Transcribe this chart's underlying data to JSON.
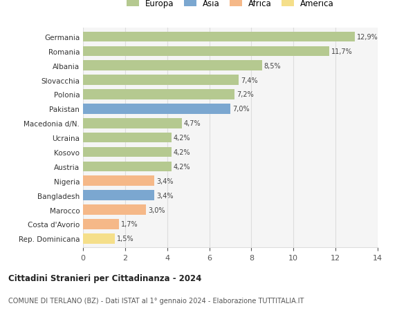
{
  "categories": [
    "Rep. Dominicana",
    "Costa d'Avorio",
    "Marocco",
    "Bangladesh",
    "Nigeria",
    "Austria",
    "Kosovo",
    "Ucraina",
    "Macedonia d/N.",
    "Pakistan",
    "Polonia",
    "Slovacchia",
    "Albania",
    "Romania",
    "Germania"
  ],
  "values": [
    1.5,
    1.7,
    3.0,
    3.4,
    3.4,
    4.2,
    4.2,
    4.2,
    4.7,
    7.0,
    7.2,
    7.4,
    8.5,
    11.7,
    12.9
  ],
  "labels": [
    "1,5%",
    "1,7%",
    "3,0%",
    "3,4%",
    "3,4%",
    "4,2%",
    "4,2%",
    "4,2%",
    "4,7%",
    "7,0%",
    "7,2%",
    "7,4%",
    "8,5%",
    "11,7%",
    "12,9%"
  ],
  "colors": [
    "#f5df8a",
    "#f5b888",
    "#f5b888",
    "#7ba7d0",
    "#f5b888",
    "#b5c990",
    "#b5c990",
    "#b5c990",
    "#b5c990",
    "#7ba7d0",
    "#b5c990",
    "#b5c990",
    "#b5c990",
    "#b5c990",
    "#b5c990"
  ],
  "legend_labels": [
    "Europa",
    "Asia",
    "Africa",
    "America"
  ],
  "legend_colors": [
    "#b5c990",
    "#7ba7d0",
    "#f5b888",
    "#f5df8a"
  ],
  "title": "Cittadini Stranieri per Cittadinanza - 2024",
  "subtitle": "COMUNE DI TERLANO (BZ) - Dati ISTAT al 1° gennaio 2024 - Elaborazione TUTTITALIA.IT",
  "xlim": [
    0,
    14
  ],
  "xticks": [
    0,
    2,
    4,
    6,
    8,
    10,
    12,
    14
  ],
  "bg_color": "#ffffff",
  "plot_bg_color": "#f5f5f5",
  "grid_color": "#dddddd",
  "bar_height": 0.7
}
